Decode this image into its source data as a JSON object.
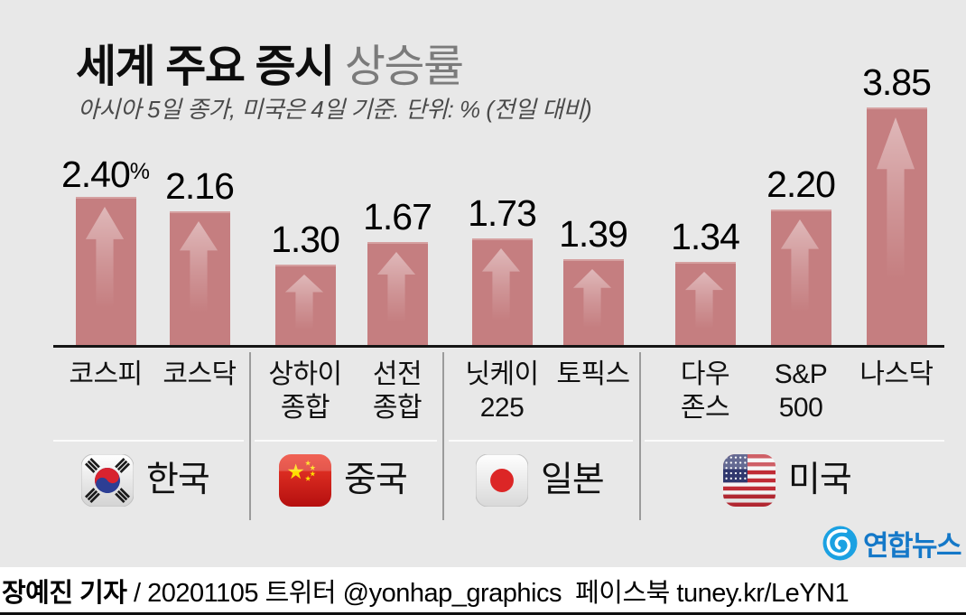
{
  "header": {
    "title_main": "세계 주요 증시",
    "title_sub": "상승률",
    "subtitle": "아시아 5일 종가, 미국은 4일 기준. 단위: % (전일 대비)"
  },
  "chart_data": {
    "type": "bar",
    "title": "세계 주요 증시 상승률",
    "subtitle": "아시아 5일 종가, 미국은 4일 기준",
    "unit": "% (전일 대비)",
    "categories": [
      "코스피",
      "코스닥",
      "상하이 종합",
      "선전 종합",
      "닛케이 225",
      "토픽스",
      "다우 존스",
      "S&P 500",
      "나스닥"
    ],
    "category_lines": [
      [
        "코스피"
      ],
      [
        "코스닥"
      ],
      [
        "상하이",
        "종합"
      ],
      [
        "선전",
        "종합"
      ],
      [
        "닛케이",
        "225"
      ],
      [
        "토픽스"
      ],
      [
        "다우",
        "존스"
      ],
      [
        "S&P",
        "500"
      ],
      [
        "나스닥"
      ]
    ],
    "values": [
      2.4,
      2.16,
      1.3,
      1.67,
      1.73,
      1.39,
      1.34,
      2.2,
      3.85
    ],
    "value_labels": [
      "2.40",
      "2.16",
      "1.30",
      "1.67",
      "1.73",
      "1.39",
      "1.34",
      "2.20",
      "3.85"
    ],
    "suffix_on_first": "%",
    "ylim": [
      0,
      4.2
    ],
    "grid": false,
    "legend": false,
    "bar_color": "#c57e80",
    "background_color": "#e8e8e8",
    "groups": [
      {
        "label": "한국",
        "flag": "kr",
        "flag_icon": "korea-flag-icon"
      },
      {
        "label": "중국",
        "flag": "cn",
        "flag_icon": "china-flag-icon"
      },
      {
        "label": "일본",
        "flag": "jp",
        "flag_icon": "japan-flag-icon"
      },
      {
        "label": "미국",
        "flag": "us",
        "flag_icon": "usa-flag-icon"
      }
    ]
  },
  "footer": {
    "credit_bold": "장예진 기자",
    "credit_rest": " / 20201105 트위터 @yonhap_graphics  페이스북 tuney.kr/LeYN1",
    "logo_text": "연합뉴스",
    "logo_color": "#1ba1e2"
  }
}
